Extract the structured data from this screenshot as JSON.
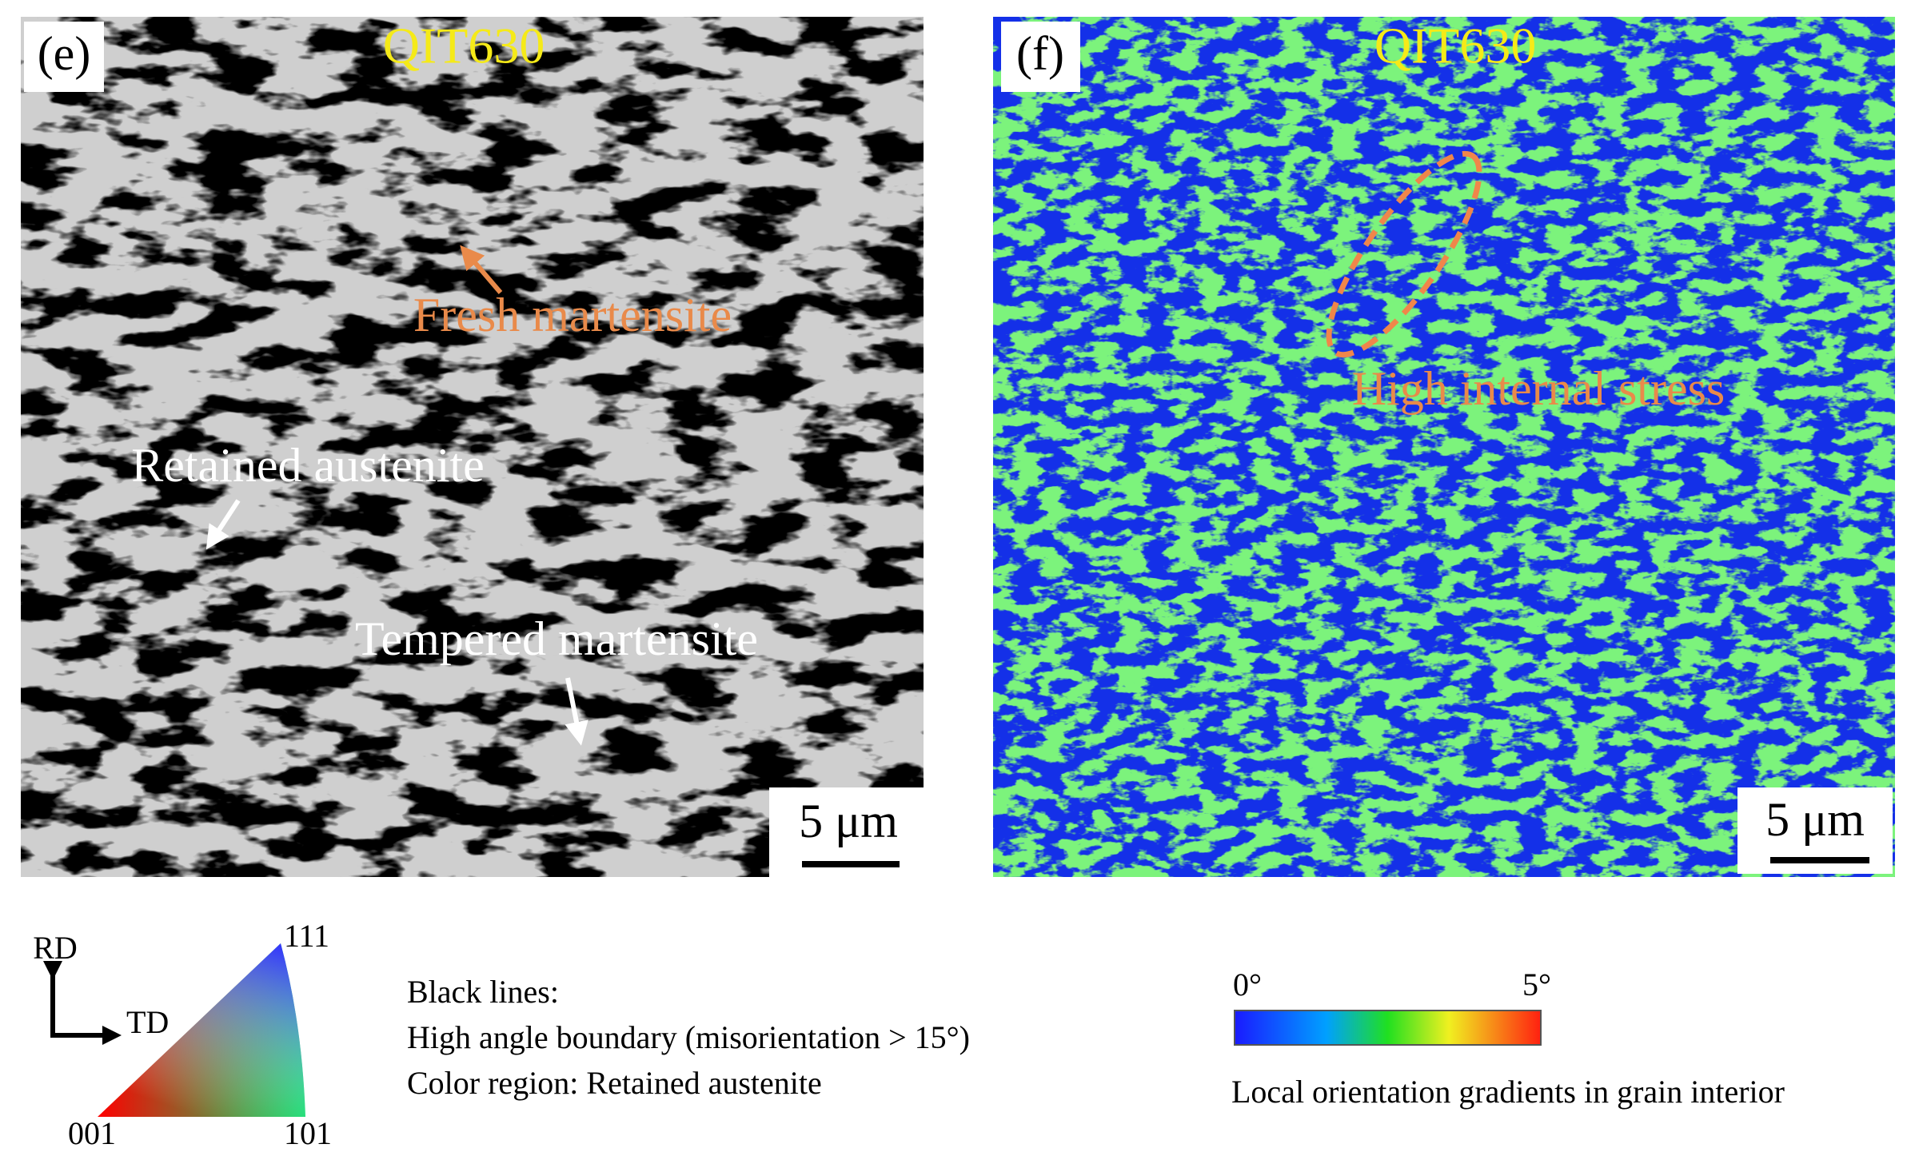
{
  "panels": [
    {
      "label": "(e)",
      "title": "QIT630",
      "annotations": [
        "Fresh martensite",
        "Retained austenite",
        "Tempered martensite"
      ],
      "scale_bar": "5 μm"
    },
    {
      "label": "(f)",
      "title": "QIT630",
      "annotations": [
        "High internal stress"
      ],
      "scale_bar": "5 μm"
    }
  ],
  "ipf_legend": {
    "axes": [
      "RD",
      "TD"
    ],
    "corners": [
      "111",
      "001",
      "101"
    ]
  },
  "boundary_legend": {
    "lines": [
      "Black lines:",
      "High angle boundary (misorientation > 15°)",
      "Color region: Retained austenite"
    ]
  },
  "colorbar": {
    "min_label": "0°",
    "max_label": "5°",
    "caption": "Local orientation gradients in grain interior"
  }
}
